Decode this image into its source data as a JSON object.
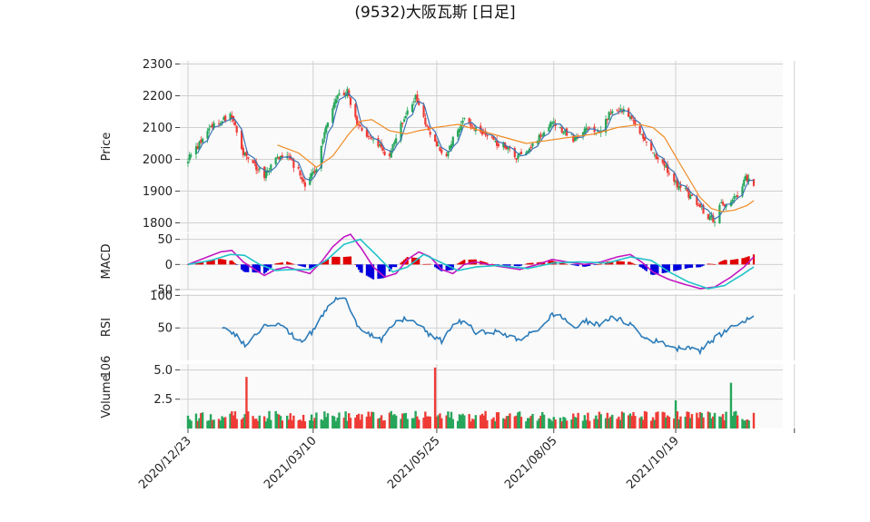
{
  "chart_data": {
    "type": "candlestick",
    "title": "(9532)大阪瓦斯 [日足]",
    "x_tick_labels": [
      "2020/12/23",
      "2021/03/10",
      "2021/05/25",
      "2021/08/05",
      "2021/10/19"
    ],
    "x_range": [
      "2020-12-23",
      "2021-12-01"
    ],
    "grid": true,
    "colors": {
      "up": "#26a65b",
      "down": "#ef3b36",
      "ma_short": "#3a74b5",
      "ma_long": "#f08a24",
      "macd": "#c218c2",
      "signal": "#1fc3c8",
      "hist_pos": "#e00000",
      "hist_neg": "#0000dd",
      "rsi": "#2b7bb9"
    },
    "panels": [
      {
        "name": "price",
        "ylabel": "Price",
        "ylim": [
          1770,
          2310
        ],
        "yticks": [
          1800,
          1900,
          2000,
          2100,
          2200,
          2300
        ],
        "close_anchors": [
          [
            "2020-12-23",
            2000
          ],
          [
            "2020-12-30",
            2050
          ],
          [
            "2021-01-08",
            2110
          ],
          [
            "2021-01-14",
            2125
          ],
          [
            "2021-01-19",
            2140
          ],
          [
            "2021-01-26",
            2020
          ],
          [
            "2021-02-03",
            1975
          ],
          [
            "2021-02-08",
            1945
          ],
          [
            "2021-02-15",
            2010
          ],
          [
            "2021-02-22",
            2015
          ],
          [
            "2021-03-01",
            1960
          ],
          [
            "2021-03-05",
            1915
          ],
          [
            "2021-03-12",
            1975
          ],
          [
            "2021-03-18",
            2100
          ],
          [
            "2021-03-25",
            2200
          ],
          [
            "2021-03-31",
            2215
          ],
          [
            "2021-04-06",
            2110
          ],
          [
            "2021-04-12",
            2070
          ],
          [
            "2021-04-19",
            2040
          ],
          [
            "2021-04-26",
            2010
          ],
          [
            "2021-05-04",
            2120
          ],
          [
            "2021-05-12",
            2200
          ],
          [
            "2021-05-18",
            2120
          ],
          [
            "2021-05-24",
            2050
          ],
          [
            "2021-05-31",
            2010
          ],
          [
            "2021-06-04",
            2060
          ],
          [
            "2021-06-10",
            2130
          ],
          [
            "2021-06-18",
            2090
          ],
          [
            "2021-06-28",
            2060
          ],
          [
            "2021-07-06",
            2040
          ],
          [
            "2021-07-13",
            2005
          ],
          [
            "2021-07-21",
            2040
          ],
          [
            "2021-07-28",
            2070
          ],
          [
            "2021-08-04",
            2120
          ],
          [
            "2021-08-11",
            2090
          ],
          [
            "2021-08-18",
            2060
          ],
          [
            "2021-08-25",
            2110
          ],
          [
            "2021-09-01",
            2080
          ],
          [
            "2021-09-08",
            2140
          ],
          [
            "2021-09-14",
            2160
          ],
          [
            "2021-09-21",
            2140
          ],
          [
            "2021-09-28",
            2080
          ],
          [
            "2021-10-04",
            2020
          ],
          [
            "2021-10-11",
            1990
          ],
          [
            "2021-10-18",
            1930
          ],
          [
            "2021-10-25",
            1900
          ],
          [
            "2021-11-01",
            1860
          ],
          [
            "2021-11-08",
            1820
          ],
          [
            "2021-11-12",
            1810
          ],
          [
            "2021-11-16",
            1860
          ],
          [
            "2021-11-22",
            1870
          ],
          [
            "2021-11-26",
            1880
          ],
          [
            "2021-12-01",
            1940
          ],
          [
            "2021-12-06",
            1920
          ]
        ],
        "ma_long_anchors": [
          [
            "2021-02-16",
            2045
          ],
          [
            "2021-03-01",
            2020
          ],
          [
            "2021-03-12",
            1975
          ],
          [
            "2021-03-22",
            2010
          ],
          [
            "2021-04-01",
            2080
          ],
          [
            "2021-04-08",
            2120
          ],
          [
            "2021-04-15",
            2125
          ],
          [
            "2021-04-26",
            2090
          ],
          [
            "2021-05-06",
            2080
          ],
          [
            "2021-05-14",
            2090
          ],
          [
            "2021-05-24",
            2100
          ],
          [
            "2021-06-07",
            2110
          ],
          [
            "2021-06-21",
            2090
          ],
          [
            "2021-07-05",
            2070
          ],
          [
            "2021-07-19",
            2050
          ],
          [
            "2021-08-02",
            2060
          ],
          [
            "2021-08-16",
            2070
          ],
          [
            "2021-08-30",
            2080
          ],
          [
            "2021-09-13",
            2100
          ],
          [
            "2021-09-27",
            2110
          ],
          [
            "2021-10-05",
            2100
          ],
          [
            "2021-10-12",
            2070
          ],
          [
            "2021-10-20",
            2000
          ],
          [
            "2021-10-27",
            1940
          ],
          [
            "2021-11-03",
            1880
          ],
          [
            "2021-11-10",
            1845
          ],
          [
            "2021-11-17",
            1835
          ],
          [
            "2021-11-24",
            1840
          ],
          [
            "2021-12-02",
            1855
          ],
          [
            "2021-12-06",
            1870
          ]
        ]
      },
      {
        "name": "macd",
        "ylabel": "MACD",
        "ylim": [
          -50,
          62
        ],
        "yticks": [
          -50,
          0,
          50
        ],
        "macd_anchors": [
          [
            "2020-12-23",
            0
          ],
          [
            "2021-01-04",
            15
          ],
          [
            "2021-01-12",
            25
          ],
          [
            "2021-01-19",
            28
          ],
          [
            "2021-01-26",
            5
          ],
          [
            "2021-02-03",
            -12
          ],
          [
            "2021-02-08",
            -22
          ],
          [
            "2021-02-15",
            -10
          ],
          [
            "2021-02-22",
            -5
          ],
          [
            "2021-03-01",
            -12
          ],
          [
            "2021-03-08",
            -18
          ],
          [
            "2021-03-15",
            5
          ],
          [
            "2021-03-22",
            35
          ],
          [
            "2021-03-29",
            55
          ],
          [
            "2021-04-02",
            60
          ],
          [
            "2021-04-09",
            30
          ],
          [
            "2021-04-16",
            -5
          ],
          [
            "2021-04-23",
            -25
          ],
          [
            "2021-04-30",
            -18
          ],
          [
            "2021-05-07",
            10
          ],
          [
            "2021-05-14",
            25
          ],
          [
            "2021-05-21",
            15
          ],
          [
            "2021-05-28",
            -10
          ],
          [
            "2021-06-04",
            -18
          ],
          [
            "2021-06-11",
            0
          ],
          [
            "2021-06-18",
            5
          ],
          [
            "2021-06-25",
            0
          ],
          [
            "2021-07-05",
            -5
          ],
          [
            "2021-07-15",
            -10
          ],
          [
            "2021-07-26",
            0
          ],
          [
            "2021-08-04",
            10
          ],
          [
            "2021-08-13",
            5
          ],
          [
            "2021-08-24",
            0
          ],
          [
            "2021-09-03",
            5
          ],
          [
            "2021-09-13",
            15
          ],
          [
            "2021-09-21",
            20
          ],
          [
            "2021-09-28",
            5
          ],
          [
            "2021-10-05",
            -15
          ],
          [
            "2021-10-15",
            -30
          ],
          [
            "2021-10-25",
            -40
          ],
          [
            "2021-11-03",
            -48
          ],
          [
            "2021-11-12",
            -45
          ],
          [
            "2021-11-22",
            -25
          ],
          [
            "2021-11-30",
            -5
          ],
          [
            "2021-12-06",
            15
          ]
        ],
        "signal_anchors": [
          [
            "2020-12-23",
            0
          ],
          [
            "2021-01-06",
            8
          ],
          [
            "2021-01-18",
            20
          ],
          [
            "2021-01-27",
            18
          ],
          [
            "2021-02-05",
            0
          ],
          [
            "2021-02-15",
            -12
          ],
          [
            "2021-02-25",
            -10
          ],
          [
            "2021-03-08",
            -10
          ],
          [
            "2021-03-18",
            8
          ],
          [
            "2021-03-29",
            40
          ],
          [
            "2021-04-08",
            50
          ],
          [
            "2021-04-19",
            15
          ],
          [
            "2021-04-28",
            -15
          ],
          [
            "2021-05-07",
            -5
          ],
          [
            "2021-05-17",
            20
          ],
          [
            "2021-05-27",
            5
          ],
          [
            "2021-06-07",
            -12
          ],
          [
            "2021-06-18",
            -5
          ],
          [
            "2021-07-01",
            -2
          ],
          [
            "2021-07-20",
            -8
          ],
          [
            "2021-08-05",
            3
          ],
          [
            "2021-08-20",
            5
          ],
          [
            "2021-09-07",
            3
          ],
          [
            "2021-09-21",
            15
          ],
          [
            "2021-10-04",
            8
          ],
          [
            "2021-10-15",
            -15
          ],
          [
            "2021-10-27",
            -35
          ],
          [
            "2021-11-08",
            -48
          ],
          [
            "2021-11-18",
            -42
          ],
          [
            "2021-11-29",
            -20
          ],
          [
            "2021-12-06",
            -5
          ]
        ]
      },
      {
        "name": "rsi",
        "ylabel": "RSI",
        "ylim": [
          0,
          102
        ],
        "yticks": [
          50,
          100
        ],
        "rsi_anchors": [
          [
            "2021-01-13",
            48
          ],
          [
            "2021-01-20",
            42
          ],
          [
            "2021-01-27",
            25
          ],
          [
            "2021-02-01",
            35
          ],
          [
            "2021-02-08",
            55
          ],
          [
            "2021-02-17",
            58
          ],
          [
            "2021-02-24",
            40
          ],
          [
            "2021-03-03",
            30
          ],
          [
            "2021-03-10",
            45
          ],
          [
            "2021-03-17",
            75
          ],
          [
            "2021-03-24",
            95
          ],
          [
            "2021-03-31",
            92
          ],
          [
            "2021-04-06",
            55
          ],
          [
            "2021-04-14",
            40
          ],
          [
            "2021-04-21",
            30
          ],
          [
            "2021-04-28",
            55
          ],
          [
            "2021-05-06",
            65
          ],
          [
            "2021-05-14",
            55
          ],
          [
            "2021-05-21",
            38
          ],
          [
            "2021-05-28",
            30
          ],
          [
            "2021-06-04",
            55
          ],
          [
            "2021-06-11",
            62
          ],
          [
            "2021-06-18",
            42
          ],
          [
            "2021-06-28",
            45
          ],
          [
            "2021-07-06",
            40
          ],
          [
            "2021-07-15",
            30
          ],
          [
            "2021-07-22",
            45
          ],
          [
            "2021-07-29",
            50
          ],
          [
            "2021-08-04",
            72
          ],
          [
            "2021-08-11",
            65
          ],
          [
            "2021-08-18",
            50
          ],
          [
            "2021-08-25",
            60
          ],
          [
            "2021-09-01",
            55
          ],
          [
            "2021-09-08",
            65
          ],
          [
            "2021-09-15",
            62
          ],
          [
            "2021-09-22",
            55
          ],
          [
            "2021-09-29",
            35
          ],
          [
            "2021-10-06",
            30
          ],
          [
            "2021-10-13",
            25
          ],
          [
            "2021-10-20",
            18
          ],
          [
            "2021-10-27",
            22
          ],
          [
            "2021-11-03",
            15
          ],
          [
            "2021-11-10",
            30
          ],
          [
            "2021-11-17",
            42
          ],
          [
            "2021-11-24",
            55
          ],
          [
            "2021-12-01",
            60
          ],
          [
            "2021-12-06",
            70
          ]
        ]
      },
      {
        "name": "volume",
        "ylabel": "Volume",
        "ylabel_exponent": "10^6",
        "ylim": [
          0,
          5.5
        ],
        "yticks": [
          2.5,
          5.0
        ],
        "volume_spikes": [
          [
            "2021-01-28",
            4.4
          ],
          [
            "2021-05-24",
            5.2
          ],
          [
            "2021-10-19",
            2.4
          ],
          [
            "2021-11-22",
            3.9
          ]
        ]
      }
    ]
  }
}
